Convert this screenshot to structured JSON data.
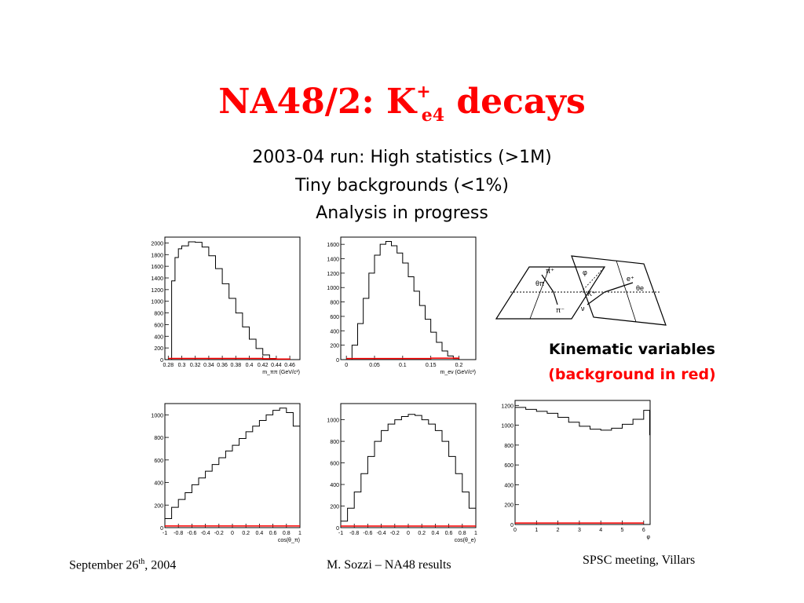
{
  "title": {
    "main": "NA48/2: K",
    "sup": "+",
    "sub": "e4",
    "tail": " decays"
  },
  "subtitle": {
    "line1": "2003-04 run: High statistics (>1M)",
    "line2": "Tiny backgrounds (<1%)",
    "line3": "Analysis in progress"
  },
  "kinematic": {
    "line1": "Kinematic variables",
    "line2": "(background in red)"
  },
  "diagram": {
    "labels": [
      "π⁺",
      "θπ",
      "π⁻",
      "φ",
      "K⁺",
      "e⁺",
      "θe",
      "ν"
    ]
  },
  "footer": {
    "date_main": "September 26",
    "date_sup": "th",
    "date_tail": ", 2004",
    "author": "M. Sozzi – NA48 results",
    "meeting": "SPSC meeting, Villars"
  },
  "colors": {
    "title": "#ff0000",
    "signal": "#000000",
    "background": "#ff0000"
  },
  "chart_data": [
    {
      "type": "line",
      "xlabel": "m_ππ (GeV/c²)",
      "xlim": [
        0.275,
        0.475
      ],
      "ylim": [
        0,
        2100
      ],
      "xticks": [
        0.28,
        0.3,
        0.32,
        0.34,
        0.36,
        0.38,
        0.4,
        0.42,
        0.44,
        0.46
      ],
      "xticklabels": [
        "0.28",
        "0.3",
        "0.32",
        "0.34",
        "0.36",
        "0.38",
        "0.4",
        "0.42",
        "0.44",
        "0.46"
      ],
      "yticks": [
        0,
        200,
        400,
        600,
        800,
        1000,
        1200,
        1400,
        1600,
        1800,
        2000
      ],
      "yticklabels": [
        "0",
        "200",
        "400",
        "600",
        "800",
        "1000",
        "1200",
        "1400",
        "1600",
        "1800",
        "2000"
      ],
      "series": [
        {
          "role": "signal",
          "x": [
            0.279,
            0.285,
            0.29,
            0.295,
            0.3,
            0.31,
            0.32,
            0.33,
            0.34,
            0.35,
            0.36,
            0.37,
            0.38,
            0.39,
            0.4,
            0.41,
            0.42,
            0.43,
            0.44,
            0.45,
            0.46
          ],
          "y": [
            0,
            1350,
            1750,
            1900,
            1950,
            2020,
            2010,
            1930,
            1780,
            1560,
            1300,
            1050,
            800,
            560,
            350,
            190,
            80,
            20,
            5,
            0,
            0
          ]
        },
        {
          "role": "background",
          "x": [
            0.28,
            0.3,
            0.32,
            0.34,
            0.36,
            0.38,
            0.4,
            0.42,
            0.44,
            0.46
          ],
          "y": [
            20,
            20,
            20,
            20,
            20,
            20,
            20,
            15,
            10,
            5
          ]
        }
      ]
    },
    {
      "type": "line",
      "xlabel": "m_eν (GeV/c²)",
      "xlim": [
        -0.01,
        0.23
      ],
      "ylim": [
        0,
        1700
      ],
      "xticks": [
        0,
        0.05,
        0.1,
        0.15,
        0.2
      ],
      "xticklabels": [
        "0",
        "0.05",
        "0.1",
        "0.15",
        "0.2"
      ],
      "yticks": [
        0,
        200,
        400,
        600,
        800,
        1000,
        1200,
        1400,
        1600
      ],
      "yticklabels": [
        "0",
        "200",
        "400",
        "600",
        "800",
        "1000",
        "1200",
        "1400",
        "1600"
      ],
      "series": [
        {
          "role": "signal",
          "x": [
            0,
            0.01,
            0.02,
            0.03,
            0.04,
            0.05,
            0.06,
            0.07,
            0.08,
            0.09,
            0.1,
            0.11,
            0.12,
            0.13,
            0.14,
            0.15,
            0.16,
            0.17,
            0.18,
            0.19,
            0.2
          ],
          "y": [
            0,
            200,
            500,
            850,
            1200,
            1450,
            1600,
            1640,
            1580,
            1480,
            1340,
            1150,
            950,
            750,
            560,
            380,
            240,
            120,
            50,
            15,
            0
          ]
        },
        {
          "role": "background",
          "x": [
            0,
            0.05,
            0.1,
            0.15,
            0.2
          ],
          "y": [
            15,
            15,
            15,
            20,
            10
          ]
        }
      ]
    },
    {
      "type": "line",
      "xlabel": "cos(θ_π)",
      "xlim": [
        -1,
        1
      ],
      "ylim": [
        0,
        1100
      ],
      "xticks": [
        -1,
        -0.8,
        -0.6,
        -0.4,
        -0.2,
        0,
        0.2,
        0.4,
        0.6,
        0.8,
        1
      ],
      "xticklabels": [
        "-1",
        "-0.8",
        "-0.6",
        "-0.4",
        "-0.2",
        "0",
        "0.2",
        "0.4",
        "0.6",
        "0.8",
        "1"
      ],
      "yticks": [
        0,
        200,
        400,
        600,
        800,
        1000
      ],
      "yticklabels": [
        "0",
        "200",
        "400",
        "600",
        "800",
        "1000"
      ],
      "series": [
        {
          "role": "signal",
          "x": [
            -1,
            -0.9,
            -0.8,
            -0.7,
            -0.6,
            -0.5,
            -0.4,
            -0.3,
            -0.2,
            -0.1,
            0,
            0.1,
            0.2,
            0.3,
            0.4,
            0.5,
            0.6,
            0.7,
            0.8,
            0.9,
            1
          ],
          "y": [
            80,
            180,
            250,
            310,
            380,
            440,
            500,
            560,
            620,
            680,
            730,
            790,
            850,
            900,
            950,
            1000,
            1040,
            1060,
            1020,
            900,
            780
          ]
        },
        {
          "role": "background",
          "x": [
            -1,
            -0.5,
            0,
            0.5,
            1
          ],
          "y": [
            15,
            15,
            15,
            15,
            15
          ]
        }
      ]
    },
    {
      "type": "line",
      "xlabel": "cos(θ_e)",
      "xlim": [
        -1,
        1
      ],
      "ylim": [
        0,
        1150
      ],
      "xticks": [
        -1,
        -0.8,
        -0.6,
        -0.4,
        -0.2,
        0,
        0.2,
        0.4,
        0.6,
        0.8,
        1
      ],
      "xticklabels": [
        "-1",
        "-0.8",
        "-0.6",
        "-0.4",
        "-0.2",
        "0",
        "0.2",
        "0.4",
        "0.6",
        "0.8",
        "1"
      ],
      "yticks": [
        0,
        200,
        400,
        600,
        800,
        1000
      ],
      "yticklabels": [
        "0",
        "200",
        "400",
        "600",
        "800",
        "1000"
      ],
      "series": [
        {
          "role": "signal",
          "x": [
            -1,
            -0.9,
            -0.8,
            -0.7,
            -0.6,
            -0.5,
            -0.4,
            -0.3,
            -0.2,
            -0.1,
            0,
            0.1,
            0.2,
            0.3,
            0.4,
            0.5,
            0.6,
            0.7,
            0.8,
            0.9,
            1
          ],
          "y": [
            60,
            180,
            330,
            500,
            660,
            800,
            900,
            960,
            1000,
            1030,
            1050,
            1040,
            1000,
            960,
            900,
            800,
            660,
            500,
            330,
            180,
            60
          ]
        },
        {
          "role": "background",
          "x": [
            -1,
            -0.5,
            0,
            0.5,
            1
          ],
          "y": [
            15,
            15,
            15,
            15,
            15
          ]
        }
      ]
    },
    {
      "type": "line",
      "xlabel": "φ",
      "xlim": [
        0,
        6.3
      ],
      "ylim": [
        0,
        1250
      ],
      "xticks": [
        0,
        1,
        2,
        3,
        4,
        5,
        6
      ],
      "xticklabels": [
        "0",
        "1",
        "2",
        "3",
        "4",
        "5",
        "6"
      ],
      "yticks": [
        0,
        200,
        400,
        600,
        800,
        1000,
        1200
      ],
      "yticklabels": [
        "0",
        "200",
        "400",
        "600",
        "800",
        "1000",
        "1200"
      ],
      "series": [
        {
          "role": "signal",
          "x": [
            0,
            0.5,
            1,
            1.5,
            2,
            2.5,
            3,
            3.5,
            4,
            4.5,
            5,
            5.5,
            6,
            6.28
          ],
          "y": [
            1180,
            1160,
            1140,
            1120,
            1080,
            1030,
            990,
            960,
            950,
            970,
            1010,
            1060,
            1150,
            900
          ]
        },
        {
          "role": "background",
          "x": [
            0,
            1,
            2,
            3,
            4,
            5,
            6
          ],
          "y": [
            15,
            15,
            15,
            15,
            15,
            15,
            15
          ]
        }
      ]
    }
  ]
}
